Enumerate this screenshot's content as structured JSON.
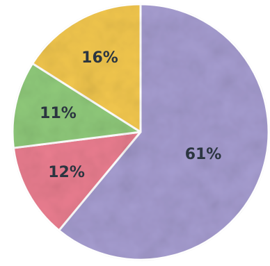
{
  "chart_data": {
    "type": "pie",
    "start_angle_deg": 0,
    "direction": "clockwise",
    "slices": [
      {
        "label": "61%",
        "value": 61,
        "color": "#a59ccf"
      },
      {
        "label": "12%",
        "value": 12,
        "color": "#e97d8f"
      },
      {
        "label": "11%",
        "value": 11,
        "color": "#8fc97a"
      },
      {
        "label": "16%",
        "value": 16,
        "color": "#f2c74e"
      }
    ]
  }
}
